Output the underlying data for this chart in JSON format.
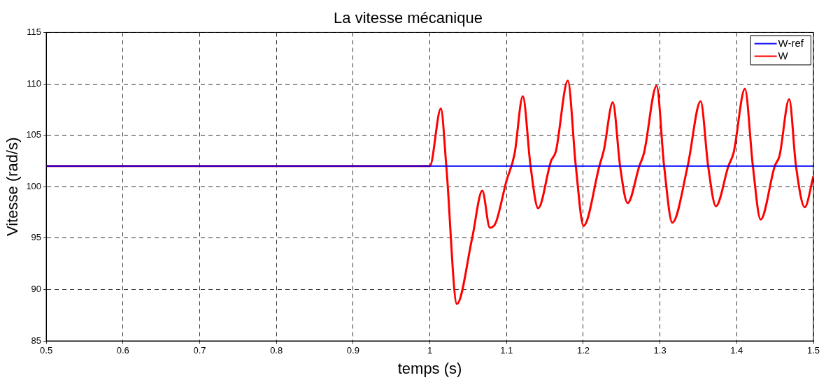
{
  "chart_data": {
    "type": "line",
    "title": "La vitesse mécanique",
    "xlabel": "temps (s)",
    "ylabel": "Vitesse (rad/s)",
    "xlim": [
      0.5,
      1.5
    ],
    "xticks": [
      0.5,
      0.6,
      0.7,
      0.8,
      0.9,
      1,
      1.1,
      1.2,
      1.3,
      1.4,
      1.5
    ],
    "ylim": [
      85,
      115
    ],
    "yticks": [
      85,
      90,
      95,
      100,
      105,
      110,
      115
    ],
    "grid": true,
    "legend": "top right",
    "marker": "none",
    "series": [
      {
        "name": "W-ref",
        "color": "#0000ff",
        "x": [
          0.5,
          1.5
        ],
        "values": [
          102,
          102
        ]
      },
      {
        "name": "W",
        "color": "#ff0000",
        "x": [
          0.5,
          1.0,
          1.0144,
          1.0215,
          1.0353,
          1.0552,
          1.0684,
          1.0783,
          1.086,
          1.0997,
          1.1105,
          1.1212,
          1.1313,
          1.1412,
          1.158,
          1.1642,
          1.1799,
          1.1903,
          1.2004,
          1.221,
          1.227,
          1.2385,
          1.248,
          1.2578,
          1.2731,
          1.2793,
          1.2956,
          1.3054,
          1.3161,
          1.3361,
          1.353,
          1.3628,
          1.3729,
          1.3892,
          1.396,
          1.4107,
          1.4211,
          1.4312,
          1.4496,
          1.4558,
          1.4684,
          1.4773,
          1.4887,
          1.5
        ],
        "values": [
          102,
          102,
          107.6,
          102,
          88.6,
          95,
          99.6,
          96,
          96.5,
          100.5,
          103.2,
          108.8,
          102,
          97.9,
          102.5,
          103.4,
          110.3,
          102,
          96.2,
          102,
          103.6,
          108.2,
          102,
          98.4,
          102,
          103.3,
          109.8,
          102,
          96.5,
          102,
          108.3,
          102,
          98.1,
          102,
          103.3,
          109.5,
          102,
          96.8,
          102,
          103,
          108.5,
          102,
          98,
          101
        ]
      }
    ]
  }
}
